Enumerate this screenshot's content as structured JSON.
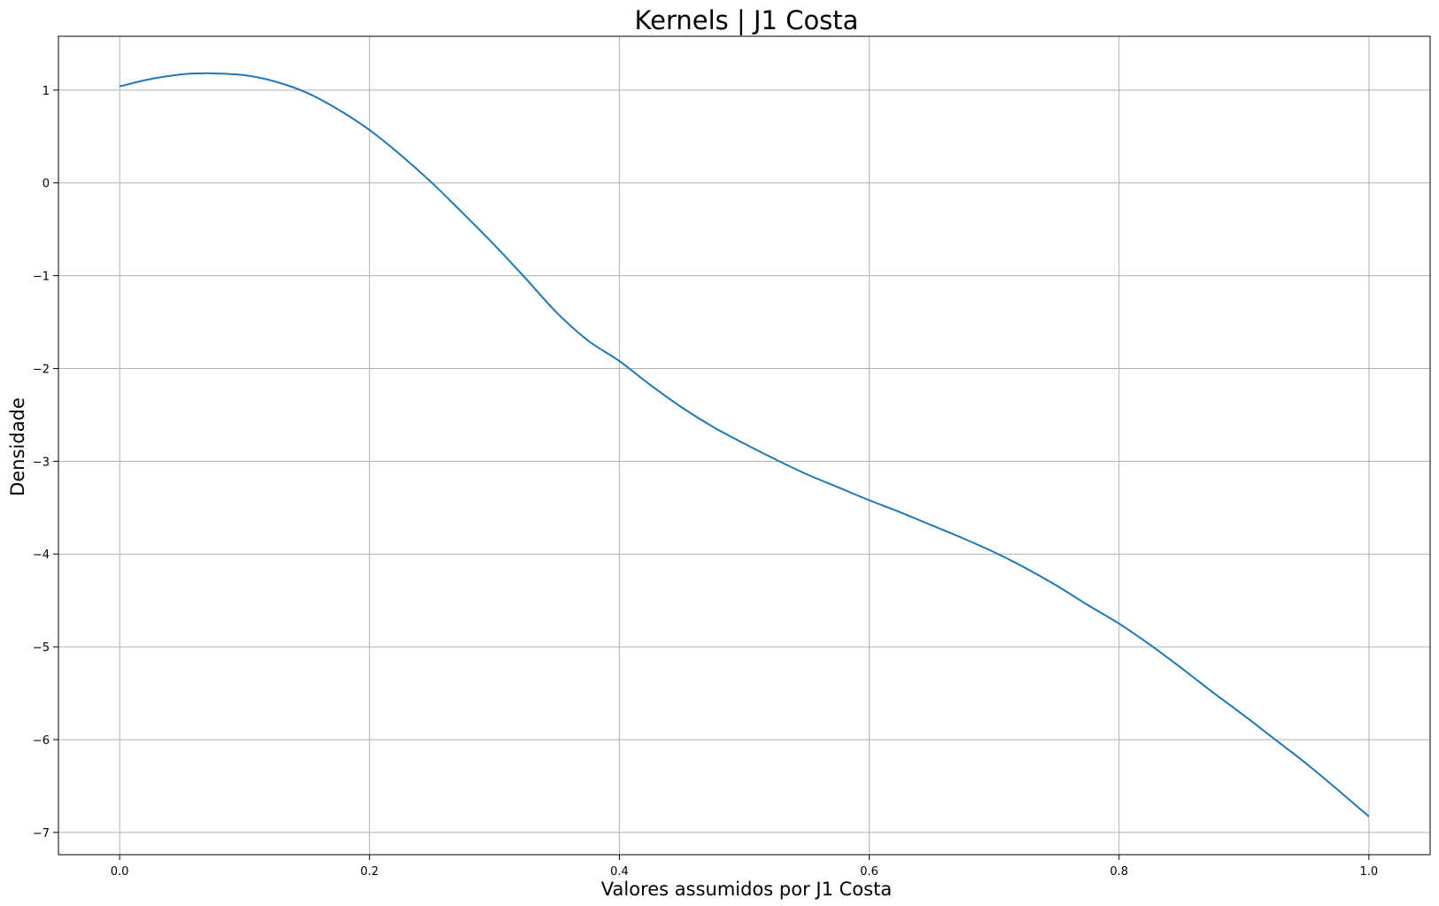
{
  "chart_data": {
    "type": "line",
    "title": "Kernels | J1 Costa",
    "xlabel": "Valores assumidos por J1 Costa",
    "ylabel": "Densidade",
    "xlim": [
      -0.049,
      1.049
    ],
    "ylim": [
      -7.24,
      1.58
    ],
    "xticks": [
      0.0,
      0.2,
      0.4,
      0.6,
      0.8,
      1.0
    ],
    "xtick_labels": [
      "0.0",
      "0.2",
      "0.4",
      "0.6",
      "0.8",
      "1.0"
    ],
    "yticks": [
      1,
      0,
      -1,
      -2,
      -3,
      -4,
      -5,
      -6,
      -7
    ],
    "ytick_labels": [
      "1",
      "0",
      "−1",
      "−2",
      "−3",
      "−4",
      "−5",
      "−6",
      "−7"
    ],
    "grid": true,
    "color": "#1f77b4",
    "series": [
      {
        "x": [
          0.0,
          0.025,
          0.05,
          0.065,
          0.075,
          0.1,
          0.125,
          0.15,
          0.175,
          0.2,
          0.225,
          0.25,
          0.275,
          0.3,
          0.325,
          0.35,
          0.375,
          0.4,
          0.425,
          0.45,
          0.475,
          0.5,
          0.525,
          0.55,
          0.575,
          0.6,
          0.625,
          0.65,
          0.675,
          0.7,
          0.725,
          0.75,
          0.775,
          0.8,
          0.825,
          0.85,
          0.875,
          0.9,
          0.925,
          0.95,
          0.975,
          1.0
        ],
        "y": [
          1.04,
          1.12,
          1.17,
          1.18,
          1.18,
          1.16,
          1.09,
          0.97,
          0.79,
          0.57,
          0.3,
          0.0,
          -0.33,
          -0.67,
          -1.03,
          -1.4,
          -1.7,
          -1.92,
          -2.18,
          -2.42,
          -2.63,
          -2.81,
          -2.98,
          -3.14,
          -3.28,
          -3.42,
          -3.55,
          -3.69,
          -3.83,
          -3.98,
          -4.15,
          -4.34,
          -4.55,
          -4.75,
          -4.98,
          -5.23,
          -5.49,
          -5.74,
          -6.0,
          -6.26,
          -6.54,
          -6.83
        ]
      }
    ]
  }
}
